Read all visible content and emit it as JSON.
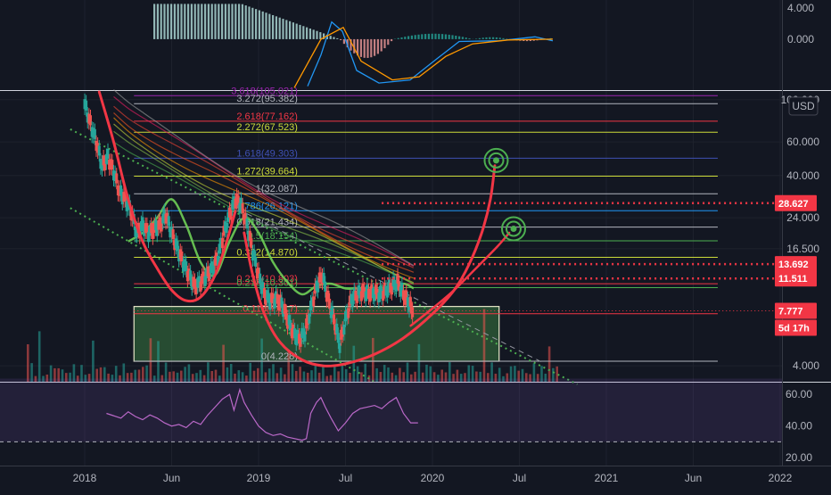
{
  "chart_data": {
    "type": "line",
    "title": "",
    "currency_button": "USD",
    "x_axis": {
      "ticks": [
        "2018",
        "Jun",
        "2019",
        "Jul",
        "2020",
        "Jul",
        "2021",
        "Jun",
        "2022"
      ]
    },
    "price_panel": {
      "scale": "log",
      "ylim": [
        3.3,
        110
      ],
      "y_ticks": [
        "100.000",
        "60.000",
        "40.000",
        "24.000",
        "16.500",
        "4.000"
      ],
      "price_badges": [
        {
          "label": "28.627",
          "value": 28.627,
          "color": "#f23645"
        },
        {
          "label": "13.692",
          "value": 13.692,
          "color": "#f23645"
        },
        {
          "label": "11.511",
          "value": 11.511,
          "color": "#f23645"
        },
        {
          "label": "7.777",
          "value": 7.777,
          "color": "#f23645"
        }
      ],
      "countdown_badge": "5d 17h",
      "fib_levels": [
        {
          "label": "3.618(105.021)",
          "value": 105.021,
          "color": "#9c27b0"
        },
        {
          "label": "3.272(95.382)",
          "value": 95.382,
          "color": "#b2b5be"
        },
        {
          "label": "2.618(77.162)",
          "value": 77.162,
          "color": "#f23645"
        },
        {
          "label": "2.272(67.523)",
          "value": 67.523,
          "color": "#cddc39"
        },
        {
          "label": "1.618(49.303)",
          "value": 49.303,
          "color": "#3f51b5"
        },
        {
          "label": "1.272(39.664)",
          "value": 39.664,
          "color": "#cddc39"
        },
        {
          "label": "1(32.087)",
          "value": 32.087,
          "color": "#b2b5be"
        },
        {
          "label": "0.786(26.121)",
          "value": 26.121,
          "color": "#2196f3"
        },
        {
          "label": "0.618(21.434)",
          "value": 21.434,
          "color": "#b2b5be"
        },
        {
          "label": "0.5(18.154)",
          "value": 18.154,
          "color": "#4caf50"
        },
        {
          "label": "0.382(14.870)",
          "value": 14.87,
          "color": "#cddc39"
        },
        {
          "label": "0.236(10.803)",
          "value": 10.803,
          "color": "#f23645"
        },
        {
          "label": "0.218(10.301)",
          "value": 10.301,
          "color": "#4caf50"
        },
        {
          "label": "0.118(7.517)",
          "value": 7.517,
          "color": "#f23645"
        },
        {
          "label": "0(4.228)",
          "value": 4.228,
          "color": "#b2b5be"
        }
      ],
      "support_zone": {
        "low": 4.228,
        "high": 8.2,
        "color": "#4caf50"
      },
      "price_series": [
        {
          "x": 0.0,
          "y": 95
        },
        {
          "x": 0.4,
          "y": 75
        },
        {
          "x": 0.8,
          "y": 60
        },
        {
          "x": 1.2,
          "y": 45
        },
        {
          "x": 1.6,
          "y": 50
        },
        {
          "x": 2.0,
          "y": 42
        },
        {
          "x": 2.4,
          "y": 33
        },
        {
          "x": 2.8,
          "y": 30
        },
        {
          "x": 3.2,
          "y": 26
        },
        {
          "x": 3.6,
          "y": 20
        },
        {
          "x": 4.0,
          "y": 22
        },
        {
          "x": 4.4,
          "y": 20
        },
        {
          "x": 4.8,
          "y": 21
        },
        {
          "x": 5.2,
          "y": 22
        },
        {
          "x": 5.6,
          "y": 25
        },
        {
          "x": 6.0,
          "y": 20
        },
        {
          "x": 6.4,
          "y": 16.5
        },
        {
          "x": 6.8,
          "y": 14
        },
        {
          "x": 7.2,
          "y": 12
        },
        {
          "x": 7.6,
          "y": 10.5
        },
        {
          "x": 8.0,
          "y": 11
        },
        {
          "x": 8.4,
          "y": 12
        },
        {
          "x": 8.8,
          "y": 13
        },
        {
          "x": 9.2,
          "y": 15
        },
        {
          "x": 9.6,
          "y": 20
        },
        {
          "x": 10.0,
          "y": 25
        },
        {
          "x": 10.4,
          "y": 30
        },
        {
          "x": 10.8,
          "y": 28
        },
        {
          "x": 11.2,
          "y": 22
        },
        {
          "x": 11.6,
          "y": 16
        },
        {
          "x": 12.0,
          "y": 12
        },
        {
          "x": 12.4,
          "y": 9.5
        },
        {
          "x": 12.8,
          "y": 8.8
        },
        {
          "x": 13.2,
          "y": 9
        },
        {
          "x": 13.6,
          "y": 8.5
        },
        {
          "x": 14.0,
          "y": 7
        },
        {
          "x": 14.4,
          "y": 6
        },
        {
          "x": 14.8,
          "y": 5.5
        },
        {
          "x": 15.2,
          "y": 6
        },
        {
          "x": 15.6,
          "y": 8
        },
        {
          "x": 16.0,
          "y": 10.5
        },
        {
          "x": 16.4,
          "y": 12
        },
        {
          "x": 16.8,
          "y": 9
        },
        {
          "x": 17.2,
          "y": 7
        },
        {
          "x": 17.6,
          "y": 5.2
        },
        {
          "x": 18.0,
          "y": 7
        },
        {
          "x": 18.4,
          "y": 9
        },
        {
          "x": 18.8,
          "y": 9.5
        },
        {
          "x": 19.2,
          "y": 9.8
        },
        {
          "x": 19.6,
          "y": 9.6
        },
        {
          "x": 20.0,
          "y": 9.7
        },
        {
          "x": 20.4,
          "y": 9.5
        },
        {
          "x": 20.8,
          "y": 10
        },
        {
          "x": 21.2,
          "y": 10.5
        },
        {
          "x": 21.6,
          "y": 11
        },
        {
          "x": 22.0,
          "y": 9.5
        },
        {
          "x": 22.4,
          "y": 8.5
        },
        {
          "x": 22.7,
          "y": 7.777
        }
      ],
      "ma_green": [
        {
          "x": 3.0,
          "y": 18
        },
        {
          "x": 4.0,
          "y": 20
        },
        {
          "x": 5.0,
          "y": 24
        },
        {
          "x": 6.0,
          "y": 30
        },
        {
          "x": 7.0,
          "y": 22
        },
        {
          "x": 8.0,
          "y": 14
        },
        {
          "x": 9.0,
          "y": 12
        },
        {
          "x": 10.0,
          "y": 18
        },
        {
          "x": 11.0,
          "y": 24
        },
        {
          "x": 12.0,
          "y": 20
        },
        {
          "x": 13.0,
          "y": 14
        },
        {
          "x": 14.0,
          "y": 11
        },
        {
          "x": 15.0,
          "y": 9.5
        },
        {
          "x": 16.0,
          "y": 10.5
        },
        {
          "x": 17.0,
          "y": 10.8
        },
        {
          "x": 18.0,
          "y": 10.2
        },
        {
          "x": 19.0,
          "y": 10.2
        },
        {
          "x": 20.0,
          "y": 10.0
        },
        {
          "x": 21.0,
          "y": 10.2
        },
        {
          "x": 22.0,
          "y": 10.8
        },
        {
          "x": 22.7,
          "y": 10.2
        }
      ],
      "ribbon_start_x": 2.0,
      "ribbon_end_x": 22.7,
      "ribbon_bands": [
        {
          "start": 60,
          "end": 10.6,
          "color": "#4caf50"
        },
        {
          "start": 66,
          "end": 11.0,
          "color": "#8bc34a"
        },
        {
          "start": 72,
          "end": 11.4,
          "color": "#cddc39"
        },
        {
          "start": 80,
          "end": 11.8,
          "color": "#ff9800"
        },
        {
          "start": 88,
          "end": 12.2,
          "color": "#ff5722"
        },
        {
          "start": 96,
          "end": 12.6,
          "color": "#f44336"
        },
        {
          "start": 105,
          "end": 13.0,
          "color": "#e91e63"
        },
        {
          "start": 110,
          "end": 13.6,
          "color": "#9e9e9e"
        }
      ],
      "cup_left": [
        {
          "x": 1.0,
          "y": 110
        },
        {
          "x": 2.0,
          "y": 60
        },
        {
          "x": 3.0,
          "y": 30
        },
        {
          "x": 4.0,
          "y": 18
        },
        {
          "x": 5.0,
          "y": 13
        },
        {
          "x": 6.0,
          "y": 10
        },
        {
          "x": 7.0,
          "y": 8.8
        },
        {
          "x": 8.0,
          "y": 9.2
        },
        {
          "x": 9.0,
          "y": 12
        },
        {
          "x": 9.8,
          "y": 18
        },
        {
          "x": 10.4,
          "y": 26
        }
      ],
      "cup_right": [
        {
          "x": 11.0,
          "y": 20
        },
        {
          "x": 11.6,
          "y": 12
        },
        {
          "x": 12.4,
          "y": 7.5
        },
        {
          "x": 13.5,
          "y": 5.3
        },
        {
          "x": 15.0,
          "y": 4.3
        },
        {
          "x": 16.5,
          "y": 4.0
        },
        {
          "x": 18.0,
          "y": 4.1
        },
        {
          "x": 20.0,
          "y": 4.6
        },
        {
          "x": 22.0,
          "y": 5.6
        },
        {
          "x": 24.0,
          "y": 7.5
        },
        {
          "x": 25.5,
          "y": 10
        },
        {
          "x": 26.5,
          "y": 13.5
        },
        {
          "x": 27.4,
          "y": 20
        },
        {
          "x": 28.0,
          "y": 30
        },
        {
          "x": 28.3,
          "y": 45
        }
      ],
      "target_curve": [
        {
          "x": 22.5,
          "y": 6.5
        },
        {
          "x": 24.0,
          "y": 8
        },
        {
          "x": 25.5,
          "y": 10
        },
        {
          "x": 27.0,
          "y": 13
        },
        {
          "x": 28.5,
          "y": 17
        },
        {
          "x": 29.3,
          "y": 20
        }
      ],
      "targets": [
        {
          "x": 28.4,
          "y": 48
        },
        {
          "x": 29.6,
          "y": 21
        }
      ],
      "trend_upper": [
        {
          "x": -1.0,
          "y": 70
        },
        {
          "x": 34.0,
          "y": 3.2
        }
      ],
      "trend_lower": [
        {
          "x": -1.0,
          "y": 27
        },
        {
          "x": 20.0,
          "y": 3.3
        }
      ],
      "trend_dashed": [
        {
          "x": 10.0,
          "y": 28
        },
        {
          "x": 31.5,
          "y": 4.2
        }
      ]
    },
    "macd_panel": {
      "y_ticks": [
        "4.000",
        "0.000"
      ],
      "ylim": [
        -6.5,
        5.0
      ]
    },
    "rsi_panel": {
      "y_ticks": [
        "60.00",
        "40.00",
        "20.00"
      ],
      "ylim": [
        15,
        68
      ],
      "upper_band": 70,
      "lower_band": 30,
      "rsi_series": [
        {
          "x": 1.5,
          "y": 48
        },
        {
          "x": 2.5,
          "y": 45
        },
        {
          "x": 3.0,
          "y": 49
        },
        {
          "x": 3.5,
          "y": 46
        },
        {
          "x": 4.0,
          "y": 44
        },
        {
          "x": 4.5,
          "y": 47
        },
        {
          "x": 5.0,
          "y": 45
        },
        {
          "x": 5.5,
          "y": 42
        },
        {
          "x": 6.0,
          "y": 40
        },
        {
          "x": 6.5,
          "y": 41
        },
        {
          "x": 7.0,
          "y": 39
        },
        {
          "x": 7.5,
          "y": 43
        },
        {
          "x": 8.0,
          "y": 41
        },
        {
          "x": 8.5,
          "y": 47
        },
        {
          "x": 9.0,
          "y": 52
        },
        {
          "x": 9.5,
          "y": 57
        },
        {
          "x": 10.0,
          "y": 60
        },
        {
          "x": 10.3,
          "y": 50
        },
        {
          "x": 10.7,
          "y": 63
        },
        {
          "x": 11.0,
          "y": 55
        },
        {
          "x": 11.5,
          "y": 47
        },
        {
          "x": 12.0,
          "y": 40
        },
        {
          "x": 12.5,
          "y": 36
        },
        {
          "x": 13.0,
          "y": 34
        },
        {
          "x": 13.5,
          "y": 35
        },
        {
          "x": 14.0,
          "y": 33
        },
        {
          "x": 14.5,
          "y": 32
        },
        {
          "x": 15.0,
          "y": 31
        },
        {
          "x": 15.3,
          "y": 32
        },
        {
          "x": 15.6,
          "y": 48
        },
        {
          "x": 16.0,
          "y": 55
        },
        {
          "x": 16.3,
          "y": 58
        },
        {
          "x": 16.6,
          "y": 52
        },
        {
          "x": 17.0,
          "y": 45
        },
        {
          "x": 17.5,
          "y": 37
        },
        {
          "x": 18.0,
          "y": 42
        },
        {
          "x": 18.5,
          "y": 48
        },
        {
          "x": 19.0,
          "y": 51
        },
        {
          "x": 19.5,
          "y": 52
        },
        {
          "x": 20.0,
          "y": 53
        },
        {
          "x": 20.5,
          "y": 51
        },
        {
          "x": 21.0,
          "y": 55
        },
        {
          "x": 21.5,
          "y": 58
        },
        {
          "x": 22.0,
          "y": 48
        },
        {
          "x": 22.5,
          "y": 42
        },
        {
          "x": 23.0,
          "y": 42
        }
      ]
    }
  }
}
